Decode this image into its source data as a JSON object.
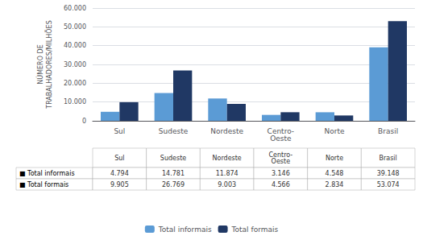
{
  "chart_data": {
    "type": "bar",
    "categories": [
      "Sul",
      "Sudeste",
      "Nordeste",
      "Centro-\nOeste",
      "Norte",
      "Brasil"
    ],
    "series": [
      {
        "name": "Total informais",
        "color": "#5b9bd5",
        "values": [
          4794,
          14781,
          11874,
          3146,
          4548,
          39148
        ]
      },
      {
        "name": "Total formais",
        "color": "#203864",
        "values": [
          9905,
          26769,
          9003,
          4566,
          2834,
          53074
        ]
      }
    ],
    "ylabel": "NÚMERO DE\nTRABALHADORES/MILHÕES",
    "ylim": [
      0,
      60000
    ],
    "yticks": [
      0,
      {
        "value": 10000,
        "label": "10.000"
      },
      {
        "value": 20000,
        "label": "20.000"
      },
      {
        "value": 30000,
        "label": "30.000"
      },
      {
        "value": 40000,
        "label": "40.000"
      },
      {
        "value": 50000,
        "label": "50.000"
      },
      {
        "value": 60000,
        "label": "60.000"
      }
    ],
    "grid": true,
    "legend": "bottom",
    "table": {
      "columns": [
        "Sul",
        "Sudeste",
        "Nordeste",
        "Centro-\nOeste",
        "Norte",
        "Brasil"
      ],
      "rows": [
        {
          "label": "■ Total informais",
          "values": [
            "4.794",
            "14.781",
            "11.874",
            "3.146",
            "4.548",
            "39.148"
          ]
        },
        {
          "label": "■ Total formais",
          "values": [
            "9.905",
            "26.769",
            "9.003",
            "4.566",
            "2.834",
            "53.074"
          ]
        }
      ]
    }
  }
}
